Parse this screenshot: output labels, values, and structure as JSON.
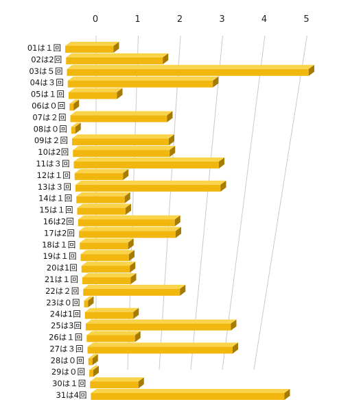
{
  "chart_data": {
    "type": "bar",
    "orientation": "horizontal",
    "style": "3d",
    "categories": [
      "01は１回",
      "02は2回",
      "03は５回",
      "04は３回",
      "05は１回",
      "06は０回",
      "07は２回",
      "08は０回",
      "09は２回",
      "10は2回",
      "11は３回",
      "12は１回",
      "13は３回",
      "14は１回",
      "15は１回",
      "16は2回",
      "17は2回",
      "18は１回",
      "19は１回",
      "20は1回",
      "21は１回",
      "22は２回",
      "23は０回",
      "24は1回",
      "25は3回",
      "26は１回",
      "27は３回",
      "28は０回",
      "29は０回",
      "30は１回",
      "31は4回"
    ],
    "values": [
      1,
      2,
      5,
      3,
      1,
      0,
      2,
      0,
      2,
      2,
      3,
      1,
      3,
      1,
      1,
      2,
      2,
      1,
      1,
      1,
      1,
      2,
      0,
      1,
      3,
      1,
      3,
      0,
      0,
      1,
      4
    ],
    "xticks": [
      0,
      1,
      2,
      3,
      4,
      5
    ],
    "xlim": [
      0,
      5
    ],
    "title": "",
    "xlabel": "",
    "ylabel": "",
    "grid": true,
    "colors": {
      "front": "#f2b70f",
      "top": "#f9d34a",
      "side": "#a67b00",
      "grid": "#c8c8c8"
    }
  }
}
